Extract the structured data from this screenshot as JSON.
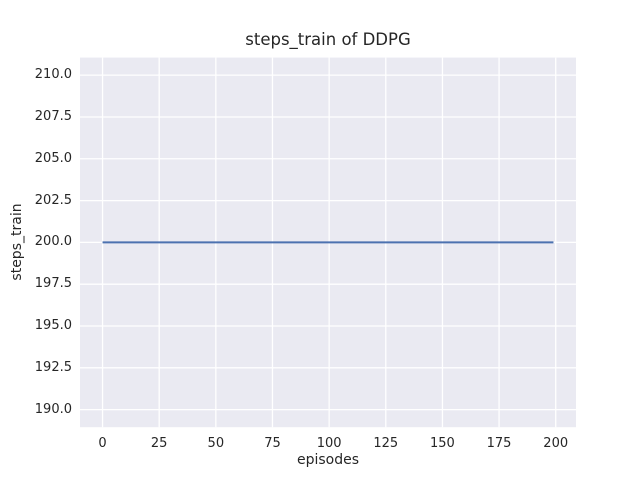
{
  "chart_data": {
    "type": "line",
    "title": "steps_train of DDPG",
    "xlabel": "episodes",
    "ylabel": "steps_train",
    "series": [
      {
        "name": "steps_train",
        "x": [
          0,
          199
        ],
        "y": [
          200,
          200
        ]
      }
    ],
    "xticks": [
      0,
      25,
      50,
      75,
      100,
      125,
      150,
      175,
      200
    ],
    "xtick_labels": [
      "0",
      "25",
      "50",
      "75",
      "100",
      "125",
      "150",
      "175",
      "200"
    ],
    "yticks": [
      190.0,
      192.5,
      195.0,
      197.5,
      200.0,
      202.5,
      205.0,
      207.5,
      210.0
    ],
    "ytick_labels": [
      "190.0",
      "192.5",
      "195.0",
      "197.5",
      "200.0",
      "202.5",
      "205.0",
      "207.5",
      "210.0"
    ],
    "xlim": [
      -9.95,
      208.95
    ],
    "ylim": [
      188.95,
      211.05
    ],
    "grid": true,
    "legend": false,
    "colors": {
      "line": "#4c72b0",
      "plot_bg": "#eaeaf2",
      "grid": "#ffffff",
      "text": "#262626",
      "figure_bg": "#ffffff"
    }
  }
}
